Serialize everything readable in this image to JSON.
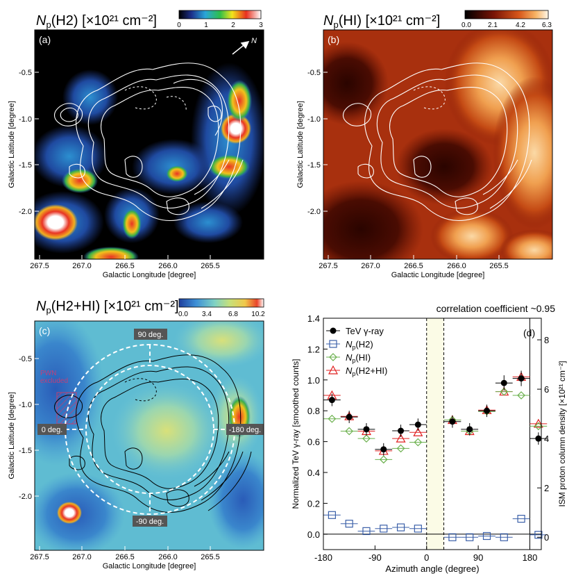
{
  "panels": {
    "a": {
      "letter": "(a)",
      "title_sym": "N",
      "title_sub": "p",
      "title_rest": "(H2) [×10²¹ cm⁻²]",
      "colorbar_ticks": [
        "0",
        "1",
        "2",
        "3"
      ],
      "colorbar_range": [
        0,
        3
      ],
      "north_label": "N",
      "xlabel": "Galactic Longitude [degree]",
      "ylabel": "Galactic Latitude [degree]",
      "xticks": [
        "267.5",
        "267.0",
        "266.5",
        "266.0",
        "265.5"
      ],
      "yticks": [
        "-0.5",
        "-1.0",
        "-1.5",
        "-2.0"
      ]
    },
    "b": {
      "letter": "(b)",
      "title_sym": "N",
      "title_sub": "p",
      "title_rest": "(HI) [×10²¹ cm⁻²]",
      "colorbar_ticks": [
        "0.0",
        "2.1",
        "4.2",
        "6.3"
      ],
      "colorbar_range": [
        0,
        6.3
      ],
      "xlabel": "Galactic Longitude [degree]",
      "ylabel": "Galactic Latitude [degree]",
      "xticks": [
        "267.5",
        "267.0",
        "266.5",
        "266.0",
        "265.5"
      ],
      "yticks": [
        "-0.5",
        "-1.0",
        "-1.5",
        "-2.0"
      ]
    },
    "c": {
      "letter": "(c)",
      "title_sym": "N",
      "title_sub": "p",
      "title_rest": "(H2+HI) [×10²¹ cm⁻²]",
      "colorbar_ticks": [
        "0.0",
        "3.4",
        "6.8",
        "10.2"
      ],
      "colorbar_range": [
        0,
        10.2
      ],
      "pwn_label_1": "PWN",
      "pwn_label_2": "excluded",
      "angle_labels": [
        "90 deg.",
        "0 deg.",
        "-180 deg.",
        "-90 deg."
      ],
      "xlabel": "Galactic Longitude [degree]",
      "ylabel": "Galactic Latitude [degree]",
      "xticks": [
        "267.5",
        "267.0",
        "266.5",
        "266.0",
        "265.5"
      ],
      "yticks": [
        "-0.5",
        "-1.0",
        "-1.5",
        "-2.0"
      ]
    }
  },
  "chart_data": {
    "type": "scatter",
    "panel_letter": "(d)",
    "title": "correlation coefficient ~0.95",
    "xlabel": "Azimuth angle (degree)",
    "ylabel": "Normalized TeV γ-ray [smoothed counts]",
    "y2label": "ISM proton column density [×10²¹ cm⁻²]",
    "xlim": [
      -180,
      200
    ],
    "ylim": [
      -0.1,
      1.4
    ],
    "y2lim": [
      -0.5,
      8.875
    ],
    "xticks": [
      -180,
      -90,
      0,
      90,
      180
    ],
    "xtick_labels": [
      "-180",
      "-90",
      "0",
      "90",
      "180"
    ],
    "yticks": [
      0.0,
      0.2,
      0.4,
      0.6,
      0.8,
      1.0,
      1.2,
      1.4
    ],
    "ytick_labels": [
      "0.0",
      "0.2",
      "0.4",
      "0.6",
      "0.8",
      "1.0",
      "1.2",
      "1.4"
    ],
    "y2ticks": [
      0,
      2,
      4,
      6,
      8
    ],
    "y2tick_labels": [
      "0",
      "2",
      "4",
      "6",
      "8"
    ],
    "excluded_band": [
      0,
      30
    ],
    "vline": 180,
    "series": [
      {
        "name": "TeV γ-ray",
        "color": "#000000",
        "marker": "filled-circle",
        "axis": "left",
        "x": [
          -165,
          -135,
          -105,
          -75,
          -45,
          -15,
          45,
          75,
          105,
          135,
          165,
          195
        ],
        "y": [
          0.87,
          0.76,
          0.68,
          0.55,
          0.67,
          0.71,
          0.73,
          0.68,
          0.8,
          0.98,
          1.01,
          0.62
        ],
        "err": [
          0.04,
          0.04,
          0.04,
          0.04,
          0.04,
          0.04,
          0.04,
          0.04,
          0.04,
          0.05,
          0.05,
          0.04
        ]
      },
      {
        "name": "Np(H2)",
        "color": "#3a5fa8",
        "marker": "open-square",
        "axis": "right",
        "x": [
          -165,
          -135,
          -105,
          -75,
          -45,
          -15,
          45,
          75,
          105,
          135,
          165,
          195
        ],
        "y": [
          0.9,
          0.55,
          0.25,
          0.35,
          0.4,
          0.35,
          0.0,
          0.0,
          0.05,
          0.0,
          0.75,
          0.1
        ]
      },
      {
        "name": "Np(HI)",
        "color": "#6ab04c",
        "marker": "open-diamond",
        "axis": "right",
        "x": [
          -165,
          -135,
          -105,
          -75,
          -45,
          -15,
          45,
          75,
          105,
          135,
          165,
          195
        ],
        "y": [
          4.8,
          4.3,
          4.0,
          3.15,
          3.6,
          3.85,
          4.75,
          4.3,
          5.1,
          5.9,
          5.75,
          4.5
        ]
      },
      {
        "name": "Np(H2+HI)",
        "color": "#e02020",
        "marker": "open-triangle",
        "axis": "right",
        "x": [
          -165,
          -135,
          -105,
          -75,
          -45,
          -15,
          45,
          75,
          105,
          135,
          165,
          195
        ],
        "y": [
          5.75,
          4.9,
          4.3,
          3.5,
          4.0,
          4.25,
          4.75,
          4.3,
          5.15,
          5.9,
          6.5,
          4.6
        ]
      }
    ],
    "legend": [
      {
        "sym": "TeV γ-ray",
        "sub": "",
        "rest": ""
      },
      {
        "sym": "N",
        "sub": "p",
        "rest": "(H2)"
      },
      {
        "sym": "N",
        "sub": "p",
        "rest": "(HI)"
      },
      {
        "sym": "N",
        "sub": "p",
        "rest": "(H2+HI)"
      }
    ]
  }
}
